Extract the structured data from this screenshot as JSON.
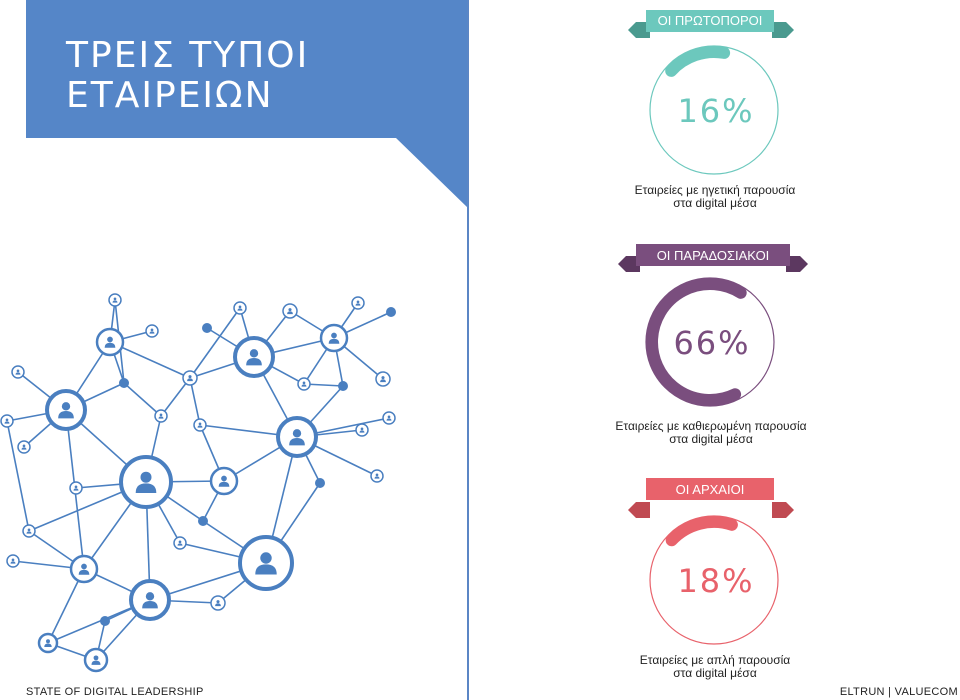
{
  "title": "ΤΡΕΙΣ ΤΥΠΟΙ\nΕΤΑΙΡΕΙΩΝ",
  "footer": {
    "left": "STATE OF DIGITAL LEADERSHIP",
    "right": "ELTRUN | VALUECOM"
  },
  "colors": {
    "title_block": "#5586c8",
    "pioneers": "#6cc8bd",
    "traditional": "#7a4e7e",
    "archaic": "#e8626b",
    "network": "#4a7fc0"
  },
  "segments": [
    {
      "label": "ΟΙ ΠΡΩΤΟΠΟΡΟΙ",
      "percent": 16,
      "percent_text": "16%",
      "caption_line1": "Εταιρείες με ηγετική παρουσία",
      "caption_line2": "στα digital μέσα"
    },
    {
      "label": "ΟΙ ΠΑΡΑΔΟΣΙΑΚΟΙ",
      "percent": 66,
      "percent_text": "66%",
      "caption_line1": "Εταιρείες με καθιερωμένη παρουσία",
      "caption_line2": "στα digital μέσα"
    },
    {
      "label": "ΟΙ ΑΡΧΑΙΟΙ",
      "percent": 18,
      "percent_text": "18%",
      "caption_line1": "Εταιρείες με απλή παρουσία",
      "caption_line2": "στα digital μέσα"
    }
  ]
}
